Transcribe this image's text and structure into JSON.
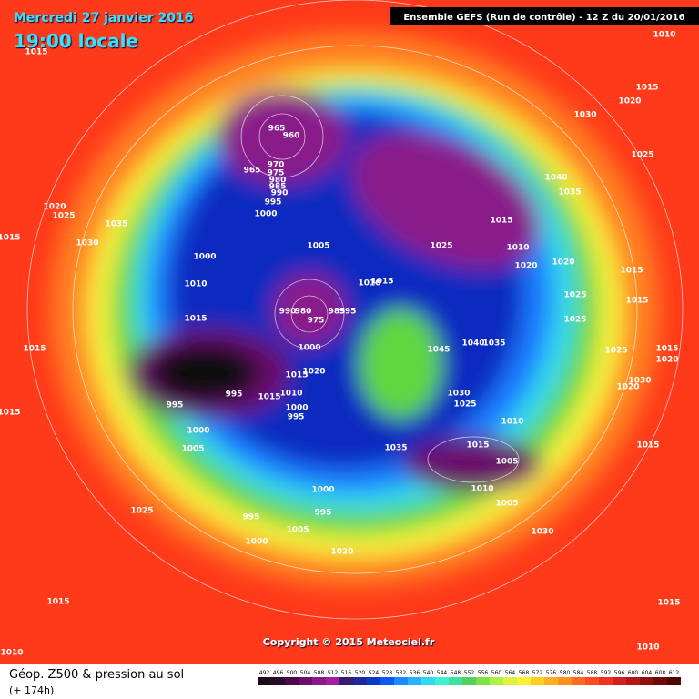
{
  "header": {
    "date": "Mercredi 27 janvier 2016",
    "time": "19:00 locale",
    "run": "Ensemble GEFS  (Run de contrôle)  -  12 Z du 20/01/2016"
  },
  "isobar_labels": [
    1010,
    1015,
    1020,
    1025,
    1030,
    1040,
    1035,
    965,
    960,
    965,
    970,
    975,
    980,
    985,
    990,
    995,
    1000,
    1015,
    1010,
    1025,
    1020,
    1020,
    1025,
    1025,
    1015,
    1015,
    1005,
    1000,
    1010,
    1015,
    1010,
    1015,
    1020,
    1025,
    1035,
    1030,
    1015,
    1015,
    1015,
    990,
    980,
    975,
    985,
    995,
    1000,
    1045,
    1040,
    1035,
    1020,
    1015,
    995,
    995,
    1015,
    1010,
    1000,
    995,
    1000,
    1005,
    1030,
    1025,
    1010,
    1015,
    1005,
    1010,
    1005,
    1035,
    1025,
    1030,
    1020,
    1015,
    1020,
    1015,
    1000,
    995,
    995,
    1005,
    1000,
    1020,
    1030,
    1025,
    1015,
    1015,
    1010,
    1010,
    1015
  ],
  "footer": {
    "copyright": "Copyright © 2015 Meteociel.fr",
    "field": "Géop. Z500 & pression au sol",
    "lead": "(+ 174h)"
  },
  "legend": {
    "values": [
      492,
      496,
      500,
      504,
      508,
      512,
      516,
      520,
      524,
      528,
      532,
      536,
      540,
      544,
      548,
      552,
      556,
      560,
      564,
      568,
      572,
      576,
      580,
      584,
      588,
      592,
      596,
      600,
      604,
      608,
      612
    ],
    "colors": [
      "#1a0a1a",
      "#2a0a2a",
      "#4a0a4a",
      "#6a106a",
      "#8a1a8a",
      "#a020a0",
      "#3a1a6a",
      "#1a2a9a",
      "#0a3ac8",
      "#0a5af0",
      "#1a8aff",
      "#2ab0ff",
      "#30d8f0",
      "#40f0d0",
      "#40e0a0",
      "#50d060",
      "#80e040",
      "#b0f040",
      "#e0f040",
      "#fff030",
      "#ffd020",
      "#ffb020",
      "#ff9020",
      "#ff6a20",
      "#ff4a20",
      "#f03020",
      "#d02020",
      "#b01818",
      "#901010",
      "#700a0a",
      "#500505"
    ]
  }
}
